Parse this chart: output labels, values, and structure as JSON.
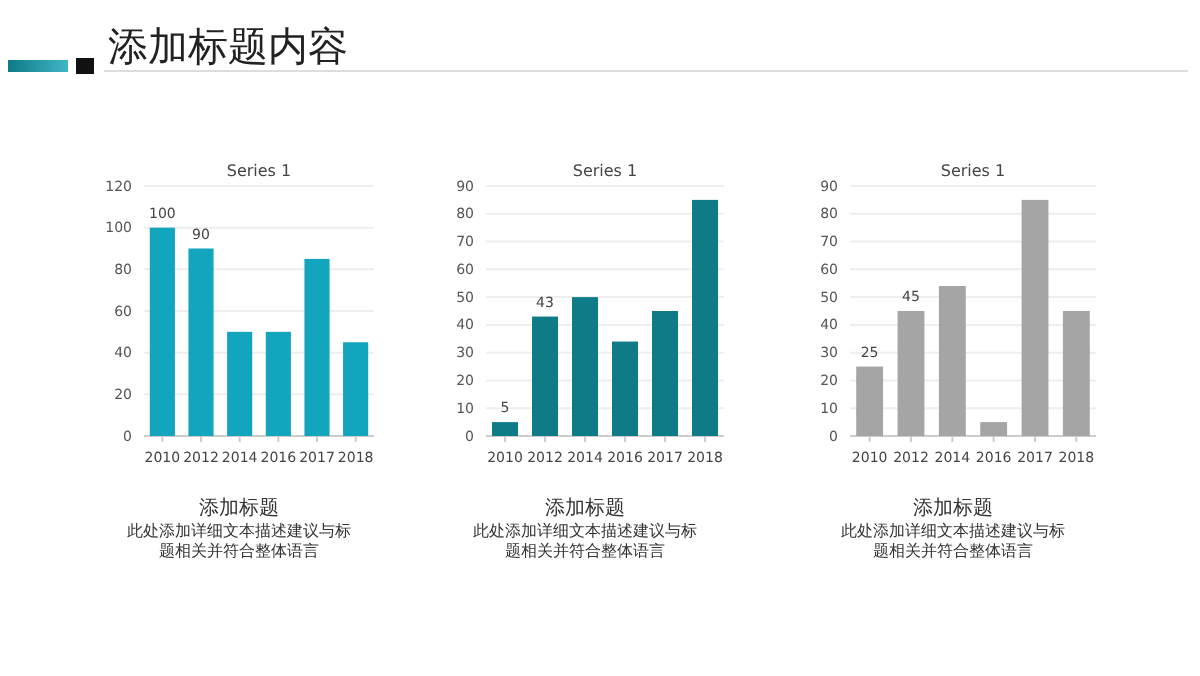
{
  "chart_data": [
    {
      "type": "other",
      "title": "添加标题内容"
    },
    {
      "type": "bar",
      "title": "Series 1",
      "categories": [
        "2010",
        "2012",
        "2014",
        "2016",
        "2017",
        "2018"
      ],
      "values": [
        100,
        90,
        50,
        50,
        85,
        45
      ],
      "color": "#12a5bd",
      "value_labels": [
        "100",
        "90",
        null,
        null,
        null,
        null
      ],
      "ylim": [
        0,
        120
      ],
      "yticks": [
        0,
        20,
        40,
        60,
        80,
        100,
        120
      ],
      "grid": "y",
      "annotations": [
        "添加标题",
        "此处添加详细文本描述建议与标题相关并符合整体语言"
      ]
    },
    {
      "type": "bar",
      "title": "Series 1",
      "categories": [
        "2010",
        "2012",
        "2014",
        "2016",
        "2017",
        "2018"
      ],
      "values": [
        5,
        43,
        50,
        34,
        45,
        85
      ],
      "color": "#0e7b87",
      "value_labels": [
        "5",
        "43",
        null,
        null,
        null,
        null
      ],
      "ylim": [
        0,
        90
      ],
      "yticks": [
        0,
        10,
        20,
        30,
        40,
        50,
        60,
        70,
        80,
        90
      ],
      "grid": "y",
      "annotations": [
        "添加标题",
        "此处添加详细文本描述建议与标题相关并符合整体语言"
      ]
    },
    {
      "type": "bar",
      "title": "Series 1",
      "categories": [
        "2010",
        "2012",
        "2014",
        "2016",
        "2017",
        "2018"
      ],
      "values": [
        25,
        45,
        54,
        5,
        85,
        45
      ],
      "color": "#a5a5a5",
      "value_labels": [
        "25",
        "45",
        null,
        null,
        null,
        null
      ],
      "ylim": [
        0,
        90
      ],
      "yticks": [
        0,
        10,
        20,
        30,
        40,
        50,
        60,
        70,
        80,
        90
      ],
      "grid": "y",
      "annotations": [
        "添加标题",
        "此处添加详细文本描述建议与标题相关并符合整体语言"
      ]
    }
  ]
}
